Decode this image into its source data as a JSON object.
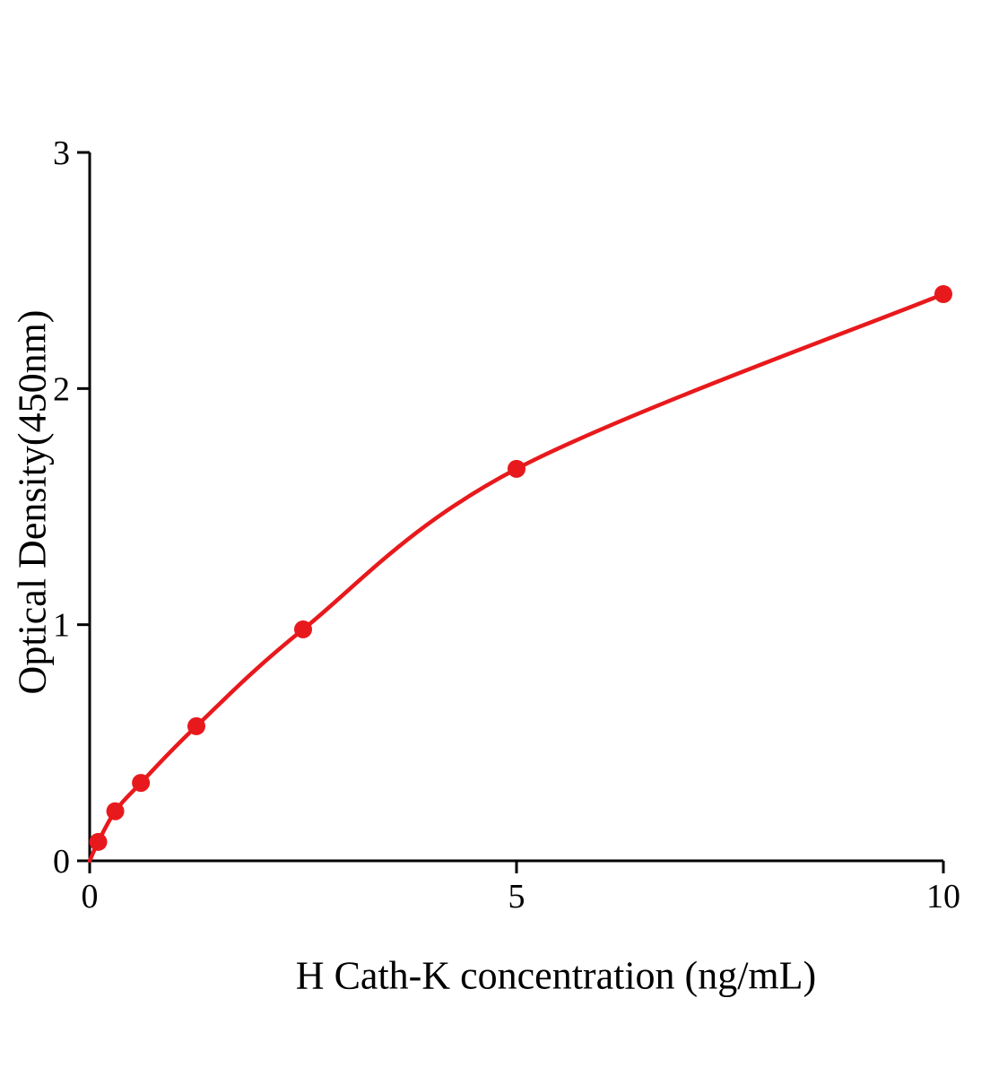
{
  "chart_data": {
    "type": "scatter",
    "title": "",
    "xlabel": "H Cath-K concentration (ng/mL)",
    "ylabel": "Optical Density(450nm)",
    "x": [
      0.1,
      0.3,
      0.6,
      1.25,
      2.5,
      5,
      10
    ],
    "y": [
      0.08,
      0.21,
      0.33,
      0.57,
      0.98,
      1.66,
      2.4
    ],
    "curve_start": {
      "x": 0,
      "y": 0
    },
    "xlim": [
      0,
      10
    ],
    "ylim": [
      0,
      3
    ],
    "xticks": [
      0,
      5,
      10
    ],
    "yticks": [
      0,
      1,
      2,
      3
    ],
    "line_color": "#e8191c",
    "point_color": "#e8191c",
    "axis_color": "#000000",
    "grid": false,
    "legend_position": null
  }
}
